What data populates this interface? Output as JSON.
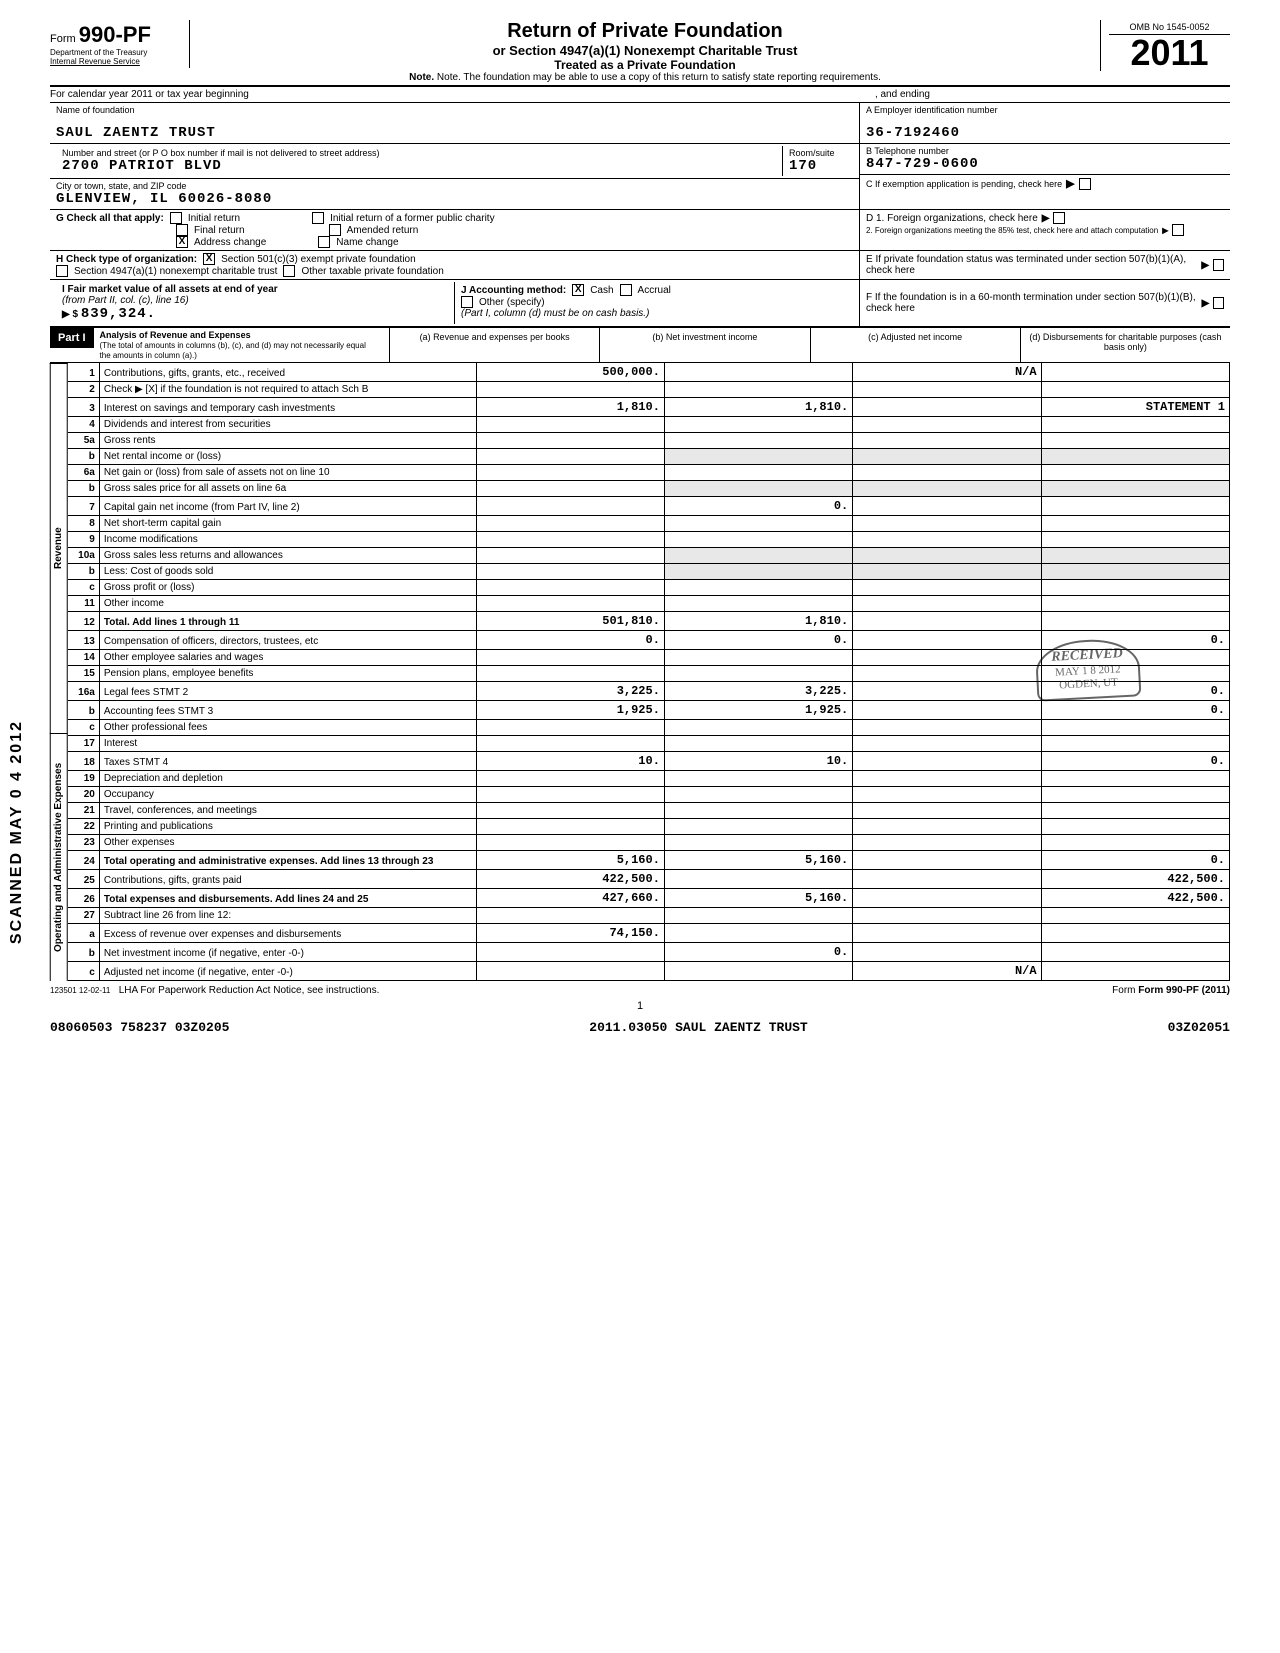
{
  "form": {
    "number": "990-PF",
    "prefix": "Form",
    "dept1": "Department of the Treasury",
    "dept2": "Internal Revenue Service",
    "title": "Return of Private Foundation",
    "sub1": "or Section 4947(a)(1) Nonexempt Charitable Trust",
    "sub2": "Treated as a Private Foundation",
    "note": "Note. The foundation may be able to use a copy of this return to satisfy state reporting requirements.",
    "omb": "OMB No 1545-0052",
    "year": "2011"
  },
  "cal": {
    "begin": "For calendar year 2011 or tax year beginning",
    "end": ", and ending"
  },
  "entity": {
    "name_label": "Name of foundation",
    "name": "SAUL ZAENTZ TRUST",
    "addr_label": "Number and street (or P O box number if mail is not delivered to street address)",
    "addr": "2700 PATRIOT BLVD",
    "room_label": "Room/suite",
    "room": "170",
    "city_label": "City or town, state, and ZIP code",
    "city": "GLENVIEW, IL  60026-8080",
    "ein_label": "A Employer identification number",
    "ein": "36-7192460",
    "phone_label": "B Telephone number",
    "phone": "847-729-0600",
    "c_label": "C If exemption application is pending, check here",
    "d1": "D 1. Foreign organizations, check here",
    "d2": "2. Foreign organizations meeting the 85% test, check here and attach computation",
    "e": "E If private foundation status was terminated under section 507(b)(1)(A), check here",
    "f": "F If the foundation is in a 60-month termination under section 507(b)(1)(B), check here"
  },
  "g": {
    "label": "G Check all that apply:",
    "opts": [
      "Initial return",
      "Final return",
      "Address change",
      "Initial return of a former public charity",
      "Amended return",
      "Name change"
    ],
    "checked_idx": 2
  },
  "h": {
    "label": "H Check type of organization:",
    "opt1": "Section 501(c)(3) exempt private foundation",
    "opt2": "Section 4947(a)(1) nonexempt charitable trust",
    "opt3": "Other taxable private foundation"
  },
  "i": {
    "label": "I Fair market value of all assets at end of year",
    "sub": "(from Part II, col. (c), line 16)",
    "arrow": "▶ $",
    "val": "839,324."
  },
  "j": {
    "label": "J Accounting method:",
    "cash": "Cash",
    "accrual": "Accrual",
    "other": "Other (specify)",
    "note": "(Part I, column (d) must be on cash basis.)"
  },
  "part1": {
    "label": "Part I",
    "title": "Analysis of Revenue and Expenses",
    "sub": "(The total of amounts in columns (b), (c), and (d) may not necessarily equal the amounts in column (a).)",
    "cols": [
      "(a) Revenue and expenses per books",
      "(b) Net investment income",
      "(c) Adjusted net income",
      "(d) Disbursements for charitable purposes (cash basis only)"
    ]
  },
  "rows": [
    {
      "n": "1",
      "d": "Contributions, gifts, grants, etc., received",
      "a": "500,000.",
      "b": "",
      "c": "N/A",
      "dcol": ""
    },
    {
      "n": "2",
      "d": "Check ▶ [X] if the foundation is not required to attach Sch B",
      "a": "",
      "b": "",
      "c": "",
      "dcol": ""
    },
    {
      "n": "3",
      "d": "Interest on savings and temporary cash investments",
      "a": "1,810.",
      "b": "1,810.",
      "c": "",
      "dcol": "STATEMENT 1"
    },
    {
      "n": "4",
      "d": "Dividends and interest from securities",
      "a": "",
      "b": "",
      "c": "",
      "dcol": ""
    },
    {
      "n": "5a",
      "d": "Gross rents",
      "a": "",
      "b": "",
      "c": "",
      "dcol": ""
    },
    {
      "n": "b",
      "d": "Net rental income or (loss)",
      "a": "",
      "b": "",
      "c": "",
      "dcol": "",
      "shade_bcd": true
    },
    {
      "n": "6a",
      "d": "Net gain or (loss) from sale of assets not on line 10",
      "a": "",
      "b": "",
      "c": "",
      "dcol": ""
    },
    {
      "n": "b",
      "d": "Gross sales price for all assets on line 6a",
      "a": "",
      "b": "",
      "c": "",
      "dcol": "",
      "shade_bcd": true
    },
    {
      "n": "7",
      "d": "Capital gain net income (from Part IV, line 2)",
      "a": "",
      "b": "0.",
      "c": "",
      "dcol": ""
    },
    {
      "n": "8",
      "d": "Net short-term capital gain",
      "a": "",
      "b": "",
      "c": "",
      "dcol": ""
    },
    {
      "n": "9",
      "d": "Income modifications",
      "a": "",
      "b": "",
      "c": "",
      "dcol": ""
    },
    {
      "n": "10a",
      "d": "Gross sales less returns and allowances",
      "a": "",
      "b": "",
      "c": "",
      "dcol": "",
      "shade_bcd": true
    },
    {
      "n": "b",
      "d": "Less: Cost of goods sold",
      "a": "",
      "b": "",
      "c": "",
      "dcol": "",
      "shade_bcd": true
    },
    {
      "n": "c",
      "d": "Gross profit or (loss)",
      "a": "",
      "b": "",
      "c": "",
      "dcol": ""
    },
    {
      "n": "11",
      "d": "Other income",
      "a": "",
      "b": "",
      "c": "",
      "dcol": ""
    },
    {
      "n": "12",
      "d": "Total. Add lines 1 through 11",
      "a": "501,810.",
      "b": "1,810.",
      "c": "",
      "dcol": "",
      "bold": true
    },
    {
      "n": "13",
      "d": "Compensation of officers, directors, trustees, etc",
      "a": "0.",
      "b": "0.",
      "c": "",
      "dcol": "0."
    },
    {
      "n": "14",
      "d": "Other employee salaries and wages",
      "a": "",
      "b": "",
      "c": "",
      "dcol": ""
    },
    {
      "n": "15",
      "d": "Pension plans, employee benefits",
      "a": "",
      "b": "",
      "c": "",
      "dcol": ""
    },
    {
      "n": "16a",
      "d": "Legal fees                    STMT 2",
      "a": "3,225.",
      "b": "3,225.",
      "c": "",
      "dcol": "0."
    },
    {
      "n": "b",
      "d": "Accounting fees            STMT 3",
      "a": "1,925.",
      "b": "1,925.",
      "c": "",
      "dcol": "0."
    },
    {
      "n": "c",
      "d": "Other professional fees",
      "a": "",
      "b": "",
      "c": "",
      "dcol": ""
    },
    {
      "n": "17",
      "d": "Interest",
      "a": "",
      "b": "",
      "c": "",
      "dcol": ""
    },
    {
      "n": "18",
      "d": "Taxes                           STMT 4",
      "a": "10.",
      "b": "10.",
      "c": "",
      "dcol": "0."
    },
    {
      "n": "19",
      "d": "Depreciation and depletion",
      "a": "",
      "b": "",
      "c": "",
      "dcol": ""
    },
    {
      "n": "20",
      "d": "Occupancy",
      "a": "",
      "b": "",
      "c": "",
      "dcol": ""
    },
    {
      "n": "21",
      "d": "Travel, conferences, and meetings",
      "a": "",
      "b": "",
      "c": "",
      "dcol": ""
    },
    {
      "n": "22",
      "d": "Printing and publications",
      "a": "",
      "b": "",
      "c": "",
      "dcol": ""
    },
    {
      "n": "23",
      "d": "Other expenses",
      "a": "",
      "b": "",
      "c": "",
      "dcol": ""
    },
    {
      "n": "24",
      "d": "Total operating and administrative expenses. Add lines 13 through 23",
      "a": "5,160.",
      "b": "5,160.",
      "c": "",
      "dcol": "0.",
      "bold": true
    },
    {
      "n": "25",
      "d": "Contributions, gifts, grants paid",
      "a": "422,500.",
      "b": "",
      "c": "",
      "dcol": "422,500."
    },
    {
      "n": "26",
      "d": "Total expenses and disbursements. Add lines 24 and 25",
      "a": "427,660.",
      "b": "5,160.",
      "c": "",
      "dcol": "422,500.",
      "bold": true
    },
    {
      "n": "27",
      "d": "Subtract line 26 from line 12:",
      "a": "",
      "b": "",
      "c": "",
      "dcol": ""
    },
    {
      "n": "a",
      "d": "Excess of revenue over expenses and disbursements",
      "a": "74,150.",
      "b": "",
      "c": "",
      "dcol": ""
    },
    {
      "n": "b",
      "d": "Net investment income (if negative, enter -0-)",
      "a": "",
      "b": "0.",
      "c": "",
      "dcol": ""
    },
    {
      "n": "c",
      "d": "Adjusted net income (if negative, enter -0-)",
      "a": "",
      "b": "",
      "c": "N/A",
      "dcol": ""
    }
  ],
  "vlabels": {
    "rev": "Revenue",
    "exp": "Operating and Administrative Expenses"
  },
  "stamp": {
    "side": "SCANNED MAY 0 4 2012",
    "recv": "RECEIVED",
    "recv2": "MAY 1 8 2012",
    "recv3": "OGDEN, UT"
  },
  "footer": {
    "code": "123501 12-02-11",
    "lha": "LHA For Paperwork Reduction Act Notice, see instructions.",
    "formref": "Form 990-PF (2011)",
    "page": "1",
    "bl": "08060503 758237 03Z0205",
    "bc": "2011.03050 SAUL ZAENTZ TRUST",
    "br": "03Z02051"
  }
}
